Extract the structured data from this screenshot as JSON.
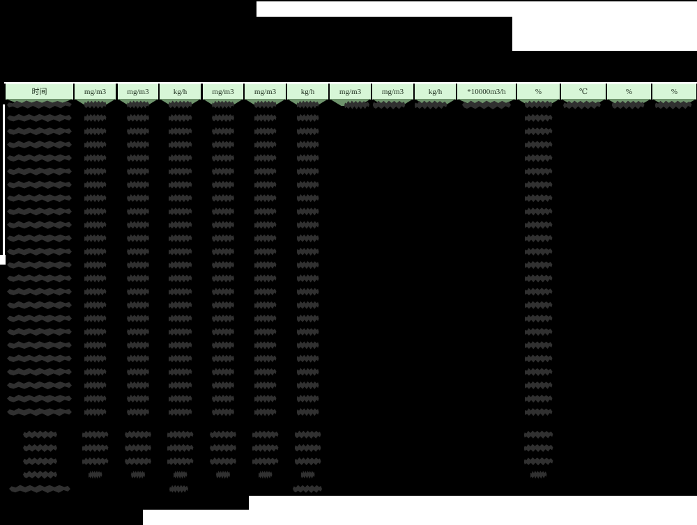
{
  "report": {
    "unit_header_row": {
      "columns": [
        {
          "label": "时间"
        },
        {
          "label": "mg/m3"
        },
        {
          "label": "mg/m3"
        },
        {
          "label": "kg/h"
        },
        {
          "label": "mg/m3"
        },
        {
          "label": "mg/m3"
        },
        {
          "label": "kg/h"
        },
        {
          "label": "mg/m3"
        },
        {
          "label": "mg/m3"
        },
        {
          "label": "kg/h"
        },
        {
          "label": "*10000m3/h"
        },
        {
          "label": "%"
        },
        {
          "label": "℃"
        },
        {
          "label": "%"
        },
        {
          "label": "%"
        }
      ]
    },
    "data_row_count": 24,
    "summary_row_count": 4,
    "footer_row_count": 1,
    "all_cell_values_redacted": true
  },
  "colors": {
    "background": "#000000",
    "header_cell_bg": "#d7f6d7",
    "header_text": "#1c2c1c",
    "header_under_shadow": "#6f946d",
    "redaction_blob": "#303030",
    "mask_white": "#ffffff"
  }
}
